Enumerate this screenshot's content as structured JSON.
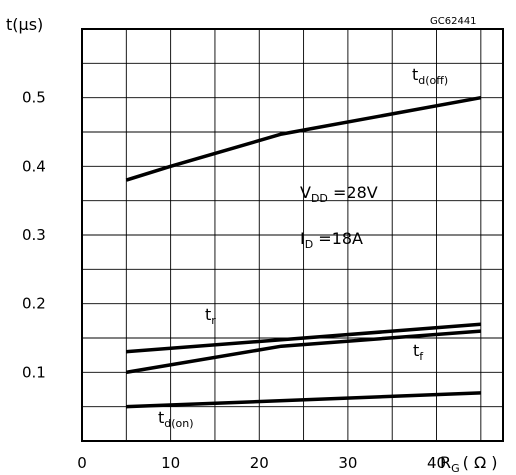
{
  "chart_data": {
    "type": "line",
    "figure_code": "GC62441",
    "ylabel": "t(μs)",
    "xlabel_main": "R",
    "xlabel_sub": "G",
    "xlabel_unit": "( Ω )",
    "xlim": [
      0,
      47.5
    ],
    "ylim": [
      0,
      0.6
    ],
    "xticks": [
      "0",
      "10",
      "20",
      "30",
      "40"
    ],
    "yticks": [
      "0.1",
      "0.2",
      "0.3",
      "0.4",
      "0.5"
    ],
    "grid": true,
    "conditions": {
      "vdd_main": "V",
      "vdd_sub": "DD",
      "vdd_value": " =28V",
      "id_main": "I",
      "id_sub": "D",
      "id_value": " =18A"
    },
    "series": [
      {
        "name": "d(off)",
        "symbol": "t",
        "sub": "d(off)",
        "x": [
          5,
          10,
          22.5,
          45
        ],
        "y": [
          0.38,
          0.4,
          0.447,
          0.5
        ]
      },
      {
        "name": "r",
        "symbol": "t",
        "sub": "r",
        "x": [
          5,
          45
        ],
        "y": [
          0.13,
          0.17
        ]
      },
      {
        "name": "f",
        "symbol": "t",
        "sub": "f",
        "x": [
          5,
          22.5,
          45
        ],
        "y": [
          0.1,
          0.138,
          0.16
        ]
      },
      {
        "name": "d(on)",
        "symbol": "t",
        "sub": "d(on)",
        "x": [
          5,
          45
        ],
        "y": [
          0.05,
          0.07
        ]
      }
    ]
  }
}
